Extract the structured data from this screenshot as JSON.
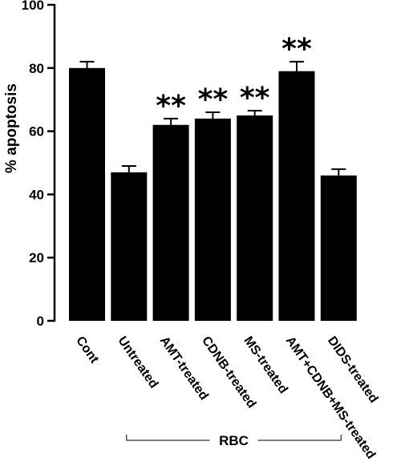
{
  "chart_data": {
    "type": "bar",
    "ylabel": "% apoptosis",
    "xlabel": "",
    "ylim": [
      0,
      100
    ],
    "yticks": [
      0,
      20,
      40,
      60,
      80,
      100
    ],
    "grid": false,
    "categories": [
      "Cont",
      "Untreated",
      "AMT-treated",
      "CDNB-treated",
      "MS-treated",
      "AMT+CDNB+MS-treated",
      "DIDS-treated"
    ],
    "values": [
      80,
      47,
      62,
      64,
      65,
      79,
      46
    ],
    "errors": [
      2,
      2,
      2,
      2,
      1.5,
      3,
      2
    ],
    "significance": [
      "",
      "",
      "**",
      "**",
      "**",
      "**",
      ""
    ],
    "group": {
      "label": "RBC",
      "from_index": 1,
      "to_index": 6
    },
    "bar_color": "#000000"
  }
}
